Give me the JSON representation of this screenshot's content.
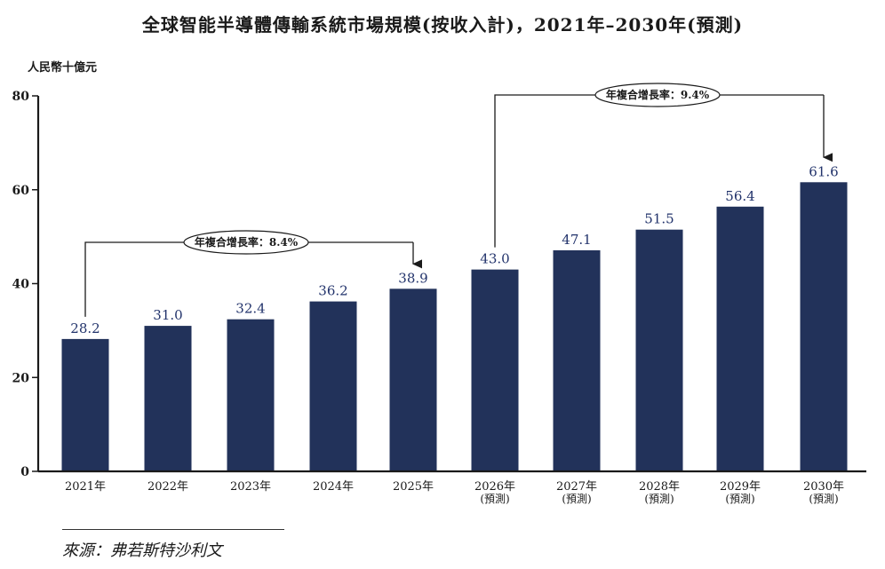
{
  "title": "全球智能半導體傳輸系統市場規模(按收入計)，2021年–2030年(預測)",
  "source": "來源：弗若斯特沙利文",
  "colors": {
    "bar": "#22325a",
    "label": "#22336b",
    "axis": "#1a1a1a"
  },
  "chart_data": {
    "type": "bar",
    "title": "全球智能半導體傳輸系統市場規模(按收入計)，2021年–2030年(預測)",
    "ylabel": "人民幣十億元",
    "xlabel": "",
    "ylim": [
      0,
      80
    ],
    "yticks": [
      "0",
      "20",
      "40",
      "60",
      "80"
    ],
    "categories": [
      "2021年",
      "2022年",
      "2023年",
      "2024年",
      "2025年",
      "2026年",
      "2027年",
      "2028年",
      "2029年",
      "2030年"
    ],
    "category_notes": [
      "",
      "",
      "",
      "",
      "",
      "(預測)",
      "(預測)",
      "(預測)",
      "(預測)",
      "(預測)"
    ],
    "values": [
      28.2,
      31.0,
      32.4,
      36.2,
      38.9,
      43.0,
      47.1,
      51.5,
      56.4,
      61.6
    ],
    "value_labels": [
      "28.2",
      "31.0",
      "32.4",
      "36.2",
      "38.9",
      "43.0",
      "47.1",
      "51.5",
      "56.4",
      "61.6"
    ],
    "grid": false,
    "legend": "none",
    "annotations": [
      {
        "text": "年複合增長率：8.4%",
        "from": 0,
        "to": 4
      },
      {
        "text": "年複合增長率：9.4%",
        "from": 5,
        "to": 9
      }
    ]
  }
}
